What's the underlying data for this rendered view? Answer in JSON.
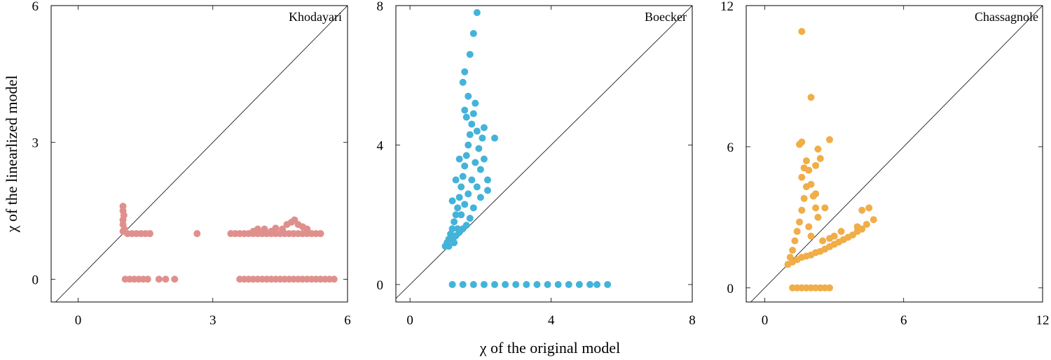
{
  "figure": {
    "xlabel": "χ of the original model",
    "ylabel": "χ of the linearlized model"
  },
  "chart_data": [
    {
      "type": "scatter",
      "title": "Khodayari",
      "color": "#e0908c",
      "xlim": [
        -0.6,
        6
      ],
      "ylim": [
        -0.5,
        6
      ],
      "xticks": [
        0,
        3,
        6
      ],
      "yticks": [
        0,
        3,
        6
      ],
      "diagonal": true,
      "points": [
        [
          1.0,
          1.6
        ],
        [
          1.0,
          1.5
        ],
        [
          1.02,
          1.4
        ],
        [
          1.0,
          1.3
        ],
        [
          1.0,
          1.2
        ],
        [
          1.03,
          1.1
        ],
        [
          1.0,
          1.05
        ],
        [
          1.1,
          1.0
        ],
        [
          1.2,
          1.0
        ],
        [
          1.3,
          1.0
        ],
        [
          1.4,
          1.0
        ],
        [
          1.5,
          1.0
        ],
        [
          1.6,
          1.0
        ],
        [
          2.65,
          1.0
        ],
        [
          3.4,
          1.0
        ],
        [
          3.5,
          1.0
        ],
        [
          3.6,
          1.0
        ],
        [
          3.7,
          1.0
        ],
        [
          3.8,
          1.0
        ],
        [
          3.9,
          1.0
        ],
        [
          4.0,
          1.0
        ],
        [
          4.1,
          1.0
        ],
        [
          4.2,
          1.0
        ],
        [
          4.3,
          1.0
        ],
        [
          4.4,
          1.0
        ],
        [
          4.5,
          1.0
        ],
        [
          4.6,
          1.0
        ],
        [
          4.7,
          1.0
        ],
        [
          4.8,
          1.0
        ],
        [
          4.9,
          1.0
        ],
        [
          5.0,
          1.0
        ],
        [
          5.1,
          1.0
        ],
        [
          5.2,
          1.0
        ],
        [
          5.3,
          1.0
        ],
        [
          5.4,
          1.0
        ],
        [
          3.9,
          1.05
        ],
        [
          4.0,
          1.1
        ],
        [
          4.15,
          1.1
        ],
        [
          4.4,
          1.12
        ],
        [
          4.55,
          1.1
        ],
        [
          4.65,
          1.2
        ],
        [
          4.75,
          1.25
        ],
        [
          4.82,
          1.3
        ],
        [
          4.9,
          1.2
        ],
        [
          5.0,
          1.15
        ],
        [
          5.1,
          1.1
        ],
        [
          4.3,
          1.05
        ],
        [
          1.05,
          0.0
        ],
        [
          1.15,
          0.0
        ],
        [
          1.25,
          0.0
        ],
        [
          1.35,
          0.0
        ],
        [
          1.45,
          0.0
        ],
        [
          1.55,
          0.0
        ],
        [
          1.8,
          0.0
        ],
        [
          1.95,
          0.0
        ],
        [
          2.15,
          0.0
        ],
        [
          3.6,
          0.0
        ],
        [
          3.7,
          0.0
        ],
        [
          3.8,
          0.0
        ],
        [
          3.9,
          0.0
        ],
        [
          4.0,
          0.0
        ],
        [
          4.1,
          0.0
        ],
        [
          4.2,
          0.0
        ],
        [
          4.3,
          0.0
        ],
        [
          4.4,
          0.0
        ],
        [
          4.5,
          0.0
        ],
        [
          4.6,
          0.0
        ],
        [
          4.7,
          0.0
        ],
        [
          4.8,
          0.0
        ],
        [
          4.9,
          0.0
        ],
        [
          5.0,
          0.0
        ],
        [
          5.1,
          0.0
        ],
        [
          5.2,
          0.0
        ],
        [
          5.3,
          0.0
        ],
        [
          5.4,
          0.0
        ],
        [
          5.5,
          0.0
        ],
        [
          5.6,
          0.0
        ],
        [
          5.7,
          0.0
        ]
      ]
    },
    {
      "type": "scatter",
      "title": "Boecker",
      "color": "#44b3d9",
      "xlim": [
        -0.4,
        8
      ],
      "ylim": [
        -0.5,
        8
      ],
      "xticks": [
        0,
        4,
        8
      ],
      "yticks": [
        0,
        4,
        8
      ],
      "diagonal": true,
      "points": [
        [
          1.0,
          1.1
        ],
        [
          1.05,
          1.2
        ],
        [
          1.1,
          1.3
        ],
        [
          1.15,
          1.45
        ],
        [
          1.2,
          1.6
        ],
        [
          1.25,
          1.8
        ],
        [
          1.3,
          2.0
        ],
        [
          1.35,
          2.2
        ],
        [
          1.4,
          2.5
        ],
        [
          1.45,
          2.8
        ],
        [
          1.5,
          3.1
        ],
        [
          1.55,
          3.4
        ],
        [
          1.6,
          3.7
        ],
        [
          1.65,
          4.0
        ],
        [
          1.7,
          4.3
        ],
        [
          1.75,
          4.6
        ],
        [
          1.8,
          4.9
        ],
        [
          1.85,
          5.2
        ],
        [
          1.9,
          2.8
        ],
        [
          2.0,
          3.3
        ],
        [
          2.1,
          3.6
        ],
        [
          2.2,
          3.0
        ],
        [
          2.0,
          2.5
        ],
        [
          1.8,
          2.2
        ],
        [
          1.7,
          1.9
        ],
        [
          1.6,
          1.7
        ],
        [
          1.5,
          1.6
        ],
        [
          1.4,
          1.5
        ],
        [
          1.3,
          1.4
        ],
        [
          1.2,
          1.3
        ],
        [
          1.25,
          1.2
        ],
        [
          1.1,
          1.1
        ],
        [
          1.35,
          1.6
        ],
        [
          1.45,
          2.0
        ],
        [
          1.55,
          2.3
        ],
        [
          1.65,
          2.6
        ],
        [
          1.75,
          3.0
        ],
        [
          1.85,
          3.5
        ],
        [
          1.95,
          3.9
        ],
        [
          2.05,
          4.2
        ],
        [
          1.6,
          4.8
        ],
        [
          1.55,
          5.0
        ],
        [
          1.65,
          5.4
        ],
        [
          1.5,
          5.8
        ],
        [
          1.55,
          6.1
        ],
        [
          1.7,
          6.6
        ],
        [
          1.8,
          7.2
        ],
        [
          1.9,
          7.8
        ],
        [
          2.4,
          4.2
        ],
        [
          2.2,
          2.7
        ],
        [
          2.1,
          4.5
        ],
        [
          1.9,
          4.4
        ],
        [
          1.3,
          3.0
        ],
        [
          1.4,
          3.6
        ],
        [
          1.2,
          2.4
        ],
        [
          1.2,
          0.0
        ],
        [
          1.5,
          0.0
        ],
        [
          1.8,
          0.0
        ],
        [
          2.1,
          0.0
        ],
        [
          2.4,
          0.0
        ],
        [
          2.7,
          0.0
        ],
        [
          3.0,
          0.0
        ],
        [
          3.3,
          0.0
        ],
        [
          3.6,
          0.0
        ],
        [
          3.9,
          0.0
        ],
        [
          4.2,
          0.0
        ],
        [
          4.5,
          0.0
        ],
        [
          4.8,
          0.0
        ],
        [
          5.1,
          0.0
        ],
        [
          5.3,
          0.0
        ],
        [
          5.6,
          0.0
        ]
      ]
    },
    {
      "type": "scatter",
      "title": "Chassagnole",
      "color": "#f0ad48",
      "xlim": [
        -0.8,
        12
      ],
      "ylim": [
        -0.6,
        12
      ],
      "xticks": [
        0,
        6,
        12
      ],
      "yticks": [
        0,
        6,
        12
      ],
      "diagonal": true,
      "points": [
        [
          1.0,
          1.0
        ],
        [
          1.1,
          1.3
        ],
        [
          1.2,
          1.6
        ],
        [
          1.3,
          2.0
        ],
        [
          1.4,
          2.4
        ],
        [
          1.5,
          2.8
        ],
        [
          1.6,
          3.3
        ],
        [
          1.7,
          3.8
        ],
        [
          1.8,
          4.3
        ],
        [
          1.6,
          4.7
        ],
        [
          1.7,
          5.1
        ],
        [
          1.8,
          5.4
        ],
        [
          1.9,
          5.0
        ],
        [
          2.0,
          4.4
        ],
        [
          2.1,
          3.9
        ],
        [
          2.2,
          3.4
        ],
        [
          2.3,
          3.0
        ],
        [
          1.9,
          2.6
        ],
        [
          2.0,
          2.2
        ],
        [
          1.5,
          6.1
        ],
        [
          1.6,
          6.2
        ],
        [
          2.3,
          5.9
        ],
        [
          2.4,
          5.5
        ],
        [
          2.2,
          5.2
        ],
        [
          2.6,
          3.4
        ],
        [
          2.2,
          4.0
        ],
        [
          1.2,
          1.1
        ],
        [
          1.4,
          1.2
        ],
        [
          1.6,
          1.3
        ],
        [
          1.8,
          1.35
        ],
        [
          2.0,
          1.4
        ],
        [
          2.2,
          1.5
        ],
        [
          2.4,
          1.55
        ],
        [
          2.6,
          1.65
        ],
        [
          2.8,
          1.75
        ],
        [
          3.0,
          1.85
        ],
        [
          3.2,
          1.95
        ],
        [
          3.4,
          2.05
        ],
        [
          3.6,
          2.15
        ],
        [
          3.8,
          2.25
        ],
        [
          4.0,
          2.4
        ],
        [
          4.2,
          2.5
        ],
        [
          4.0,
          2.6
        ],
        [
          4.4,
          2.7
        ],
        [
          4.2,
          3.3
        ],
        [
          4.5,
          3.4
        ],
        [
          4.7,
          2.9
        ],
        [
          3.0,
          2.2
        ],
        [
          3.3,
          2.4
        ],
        [
          2.5,
          2.0
        ],
        [
          2.8,
          2.1
        ],
        [
          2.8,
          6.3
        ],
        [
          2.0,
          8.1
        ],
        [
          1.6,
          10.9
        ],
        [
          1.2,
          0.0
        ],
        [
          1.4,
          0.0
        ],
        [
          1.6,
          0.0
        ],
        [
          1.8,
          0.0
        ],
        [
          2.0,
          0.0
        ],
        [
          2.2,
          0.0
        ],
        [
          2.4,
          0.0
        ],
        [
          2.6,
          0.0
        ],
        [
          2.8,
          0.0
        ]
      ]
    }
  ]
}
